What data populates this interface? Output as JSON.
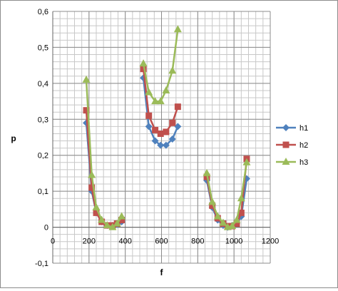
{
  "chart_data": {
    "type": "line",
    "title": "",
    "xlabel": "f",
    "ylabel": "p",
    "xlim": [
      0,
      1200
    ],
    "ylim": [
      -0.1,
      0.6
    ],
    "x_ticks": [
      "0",
      "200",
      "400",
      "600",
      "800",
      "1000",
      "1200"
    ],
    "y_ticks": [
      "-0,1",
      "0",
      "0,1",
      "0,2",
      "0,3",
      "0,4",
      "0,5",
      "0,6"
    ],
    "x_tick_values": [
      0,
      200,
      400,
      600,
      800,
      1000,
      1200
    ],
    "y_tick_values": [
      -0.1,
      0,
      0.1,
      0.2,
      0.3,
      0.4,
      0.5,
      0.6
    ],
    "grid": true,
    "legend_position": "right",
    "series": [
      {
        "name": "h1",
        "color": "#4f81bd",
        "marker": "diamond",
        "segments": [
          [
            [
              185,
              0.29
            ],
            [
              215,
              0.1
            ],
            [
              240,
              0.04
            ],
            [
              270,
              0.015
            ],
            [
              300,
              0.005
            ],
            [
              330,
              0.005
            ],
            [
              355,
              0.008
            ],
            [
              380,
              0.015
            ]
          ],
          [
            [
              500,
              0.415
            ],
            [
              530,
              0.28
            ],
            [
              565,
              0.24
            ],
            [
              595,
              0.228
            ],
            [
              625,
              0.228
            ],
            [
              660,
              0.245
            ],
            [
              690,
              0.28
            ]
          ],
          [
            [
              850,
              0.13
            ],
            [
              880,
              0.055
            ],
            [
              910,
              0.02
            ],
            [
              940,
              0.005
            ],
            [
              965,
              0.0
            ],
            [
              990,
              0.005
            ],
            [
              1015,
              0.01
            ],
            [
              1040,
              0.03
            ],
            [
              1070,
              0.135
            ]
          ]
        ]
      },
      {
        "name": "h2",
        "color": "#c0504d",
        "marker": "square",
        "segments": [
          [
            [
              185,
              0.325
            ],
            [
              215,
              0.11
            ],
            [
              240,
              0.04
            ],
            [
              270,
              0.015
            ],
            [
              300,
              0.005
            ],
            [
              330,
              0.005
            ],
            [
              355,
              0.01
            ],
            [
              380,
              0.02
            ]
          ],
          [
            [
              500,
              0.44
            ],
            [
              530,
              0.31
            ],
            [
              565,
              0.27
            ],
            [
              595,
              0.26
            ],
            [
              625,
              0.265
            ],
            [
              660,
              0.29
            ],
            [
              690,
              0.335
            ]
          ],
          [
            [
              850,
              0.14
            ],
            [
              880,
              0.06
            ],
            [
              910,
              0.025
            ],
            [
              940,
              0.01
            ],
            [
              965,
              0.003
            ],
            [
              990,
              0.003
            ],
            [
              1015,
              0.01
            ],
            [
              1040,
              0.04
            ],
            [
              1070,
              0.19
            ]
          ]
        ]
      },
      {
        "name": "h3",
        "color": "#9bbb59",
        "marker": "triangle",
        "segments": [
          [
            [
              185,
              0.41
            ],
            [
              215,
              0.145
            ],
            [
              240,
              0.055
            ],
            [
              270,
              0.02
            ],
            [
              300,
              0.005
            ],
            [
              330,
              0.0
            ],
            [
              355,
              0.01
            ],
            [
              380,
              0.03
            ]
          ],
          [
            [
              500,
              0.455
            ],
            [
              530,
              0.375
            ],
            [
              565,
              0.35
            ],
            [
              595,
              0.35
            ],
            [
              625,
              0.38
            ],
            [
              660,
              0.435
            ],
            [
              690,
              0.55
            ]
          ],
          [
            [
              850,
              0.15
            ],
            [
              880,
              0.07
            ],
            [
              910,
              0.03
            ],
            [
              940,
              0.012
            ],
            [
              965,
              0.0
            ],
            [
              990,
              0.003
            ],
            [
              1015,
              0.02
            ],
            [
              1040,
              0.08
            ],
            [
              1070,
              0.18
            ]
          ]
        ]
      }
    ]
  }
}
